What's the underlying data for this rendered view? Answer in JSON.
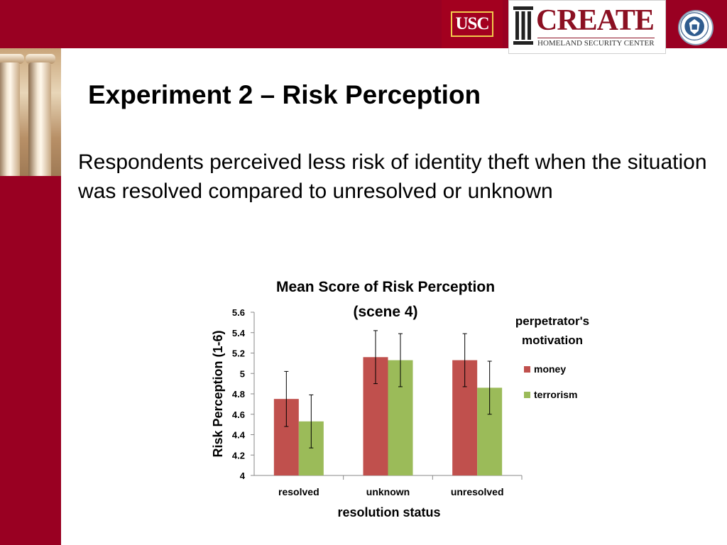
{
  "header": {
    "usc_logo_text": "USC",
    "create_logo_text": "CREATE",
    "create_logo_subtitle": "HOMELAND SECURITY CENTER",
    "seal_icon": "dhs-seal-icon",
    "colors": {
      "banner": "#990022",
      "create_red": "#8b1022"
    }
  },
  "slide": {
    "title": "Experiment 2 – Risk Perception",
    "body": "Respondents perceived less risk of identity theft when the situation was resolved compared to unresolved or unknown"
  },
  "chart_data": {
    "type": "bar",
    "title_line1": "Mean Score of Risk Perception",
    "title_line2": "(scene 4)",
    "xlabel": "resolution status",
    "ylabel": "Risk Perception (1-6)",
    "ylim": [
      4,
      5.6
    ],
    "yticks": [
      "4",
      "4.2",
      "4.4",
      "4.6",
      "4.8",
      "5",
      "5.2",
      "5.4",
      "5.6"
    ],
    "categories": [
      "resolved",
      "unknown",
      "unresolved"
    ],
    "legend_title_line1": "perpetrator's",
    "legend_title_line2": "motivation",
    "legend_position": "right",
    "grid": false,
    "series": [
      {
        "name": "money",
        "color": "#c0504d",
        "values": [
          4.75,
          5.16,
          5.13
        ],
        "error": [
          0.27,
          0.26,
          0.26
        ]
      },
      {
        "name": "terrorism",
        "color": "#9bbb59",
        "values": [
          4.53,
          5.13,
          4.86
        ],
        "error": [
          0.26,
          0.26,
          0.26
        ]
      }
    ]
  }
}
